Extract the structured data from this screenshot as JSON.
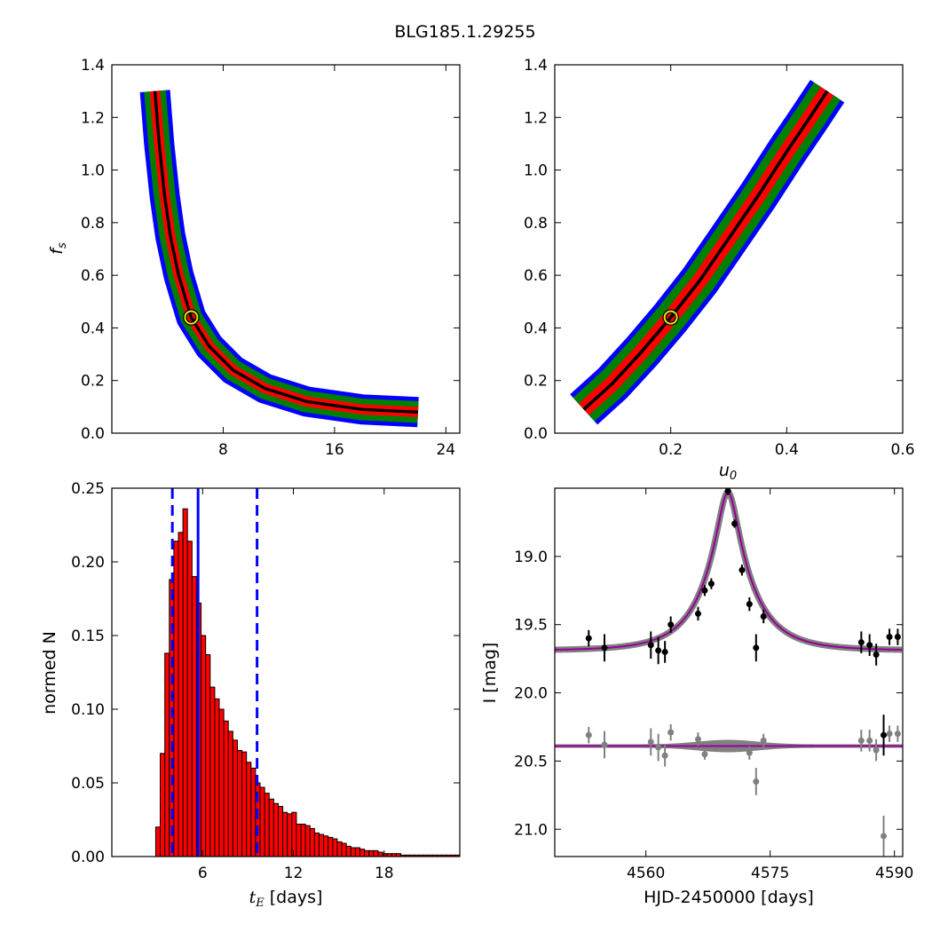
{
  "title": "BLG185.1.29255",
  "chart_data": [
    {
      "type": "heatmap",
      "panel": "top-left",
      "xlabel": "",
      "ylabel": "f_s",
      "xlim": [
        0,
        25
      ],
      "ylim": [
        0,
        1.4
      ],
      "xticks": [
        "8",
        "16",
        "24"
      ],
      "yticks": [
        "0.0",
        "0.2",
        "0.4",
        "0.6",
        "0.8",
        "1.0",
        "1.2",
        "1.4"
      ],
      "levels": [
        {
          "name": "outer",
          "color": "#0000ff",
          "width_frac": 1.0
        },
        {
          "name": "middle",
          "color": "#008000",
          "width_frac": 0.72
        },
        {
          "name": "inner",
          "color": "#ff0000",
          "width_frac": 0.34
        },
        {
          "name": "core",
          "color": "#000000",
          "width_frac": 0.1
        }
      ],
      "ridge_points": [
        {
          "x": 3.1,
          "y": 1.3
        },
        {
          "x": 3.4,
          "y": 1.1
        },
        {
          "x": 3.8,
          "y": 0.9
        },
        {
          "x": 4.2,
          "y": 0.75
        },
        {
          "x": 4.8,
          "y": 0.6
        },
        {
          "x": 5.7,
          "y": 0.44
        },
        {
          "x": 7.0,
          "y": 0.33
        },
        {
          "x": 8.7,
          "y": 0.24
        },
        {
          "x": 11.0,
          "y": 0.17
        },
        {
          "x": 14.0,
          "y": 0.12
        },
        {
          "x": 18.0,
          "y": 0.09
        },
        {
          "x": 22.0,
          "y": 0.08
        }
      ],
      "best_fit": {
        "x": 5.7,
        "y": 0.44
      }
    },
    {
      "type": "heatmap",
      "panel": "top-right",
      "xlabel": "u_0",
      "ylabel": "",
      "xlim": [
        0,
        0.6
      ],
      "ylim": [
        0,
        1.4
      ],
      "xticks": [
        "0.2",
        "0.4",
        "0.6"
      ],
      "yticks": [
        "0.0",
        "0.2",
        "0.4",
        "0.6",
        "0.8",
        "1.0",
        "1.2",
        "1.4"
      ],
      "levels": [
        {
          "name": "outer",
          "color": "#0000ff",
          "width_frac": 1.0
        },
        {
          "name": "middle",
          "color": "#008000",
          "width_frac": 0.78
        },
        {
          "name": "inner",
          "color": "#ff0000",
          "width_frac": 0.38
        },
        {
          "name": "core",
          "color": "#000000",
          "width_frac": 0.08
        }
      ],
      "ridge_points": [
        {
          "x": 0.05,
          "y": 0.09
        },
        {
          "x": 0.1,
          "y": 0.19
        },
        {
          "x": 0.15,
          "y": 0.31
        },
        {
          "x": 0.2,
          "y": 0.44
        },
        {
          "x": 0.25,
          "y": 0.58
        },
        {
          "x": 0.3,
          "y": 0.74
        },
        {
          "x": 0.35,
          "y": 0.9
        },
        {
          "x": 0.4,
          "y": 1.07
        },
        {
          "x": 0.44,
          "y": 1.2
        },
        {
          "x": 0.47,
          "y": 1.3
        }
      ],
      "best_fit": {
        "x": 0.2,
        "y": 0.44
      }
    },
    {
      "type": "bar",
      "panel": "bottom-left",
      "xlabel": "t_E [days]",
      "ylabel": "normed N",
      "xlim": [
        0,
        23
      ],
      "ylim": [
        0,
        0.25
      ],
      "xticks": [
        "6",
        "12",
        "18"
      ],
      "yticks": [
        "0.00",
        "0.05",
        "0.10",
        "0.15",
        "0.20",
        "0.25"
      ],
      "bin_width": 0.3,
      "bin_start": 2.9,
      "bar_color": "#ff0000",
      "values": [
        0.02,
        0.07,
        0.138,
        0.188,
        0.214,
        0.22,
        0.236,
        0.214,
        0.19,
        0.172,
        0.15,
        0.137,
        0.115,
        0.107,
        0.1,
        0.092,
        0.085,
        0.079,
        0.072,
        0.071,
        0.064,
        0.06,
        0.05,
        0.047,
        0.043,
        0.039,
        0.036,
        0.034,
        0.03,
        0.029,
        0.03,
        0.022,
        0.022,
        0.021,
        0.019,
        0.016,
        0.015,
        0.014,
        0.013,
        0.012,
        0.01,
        0.009,
        0.007,
        0.006,
        0.006,
        0.005,
        0.004,
        0.004,
        0.004,
        0.003,
        0.002,
        0.002,
        0.002,
        0.002,
        0.001,
        0.001,
        0.001,
        0.001,
        0.001,
        0.001,
        0.001,
        0.001,
        0.001,
        0.001,
        0.001,
        0.001,
        0.001
      ],
      "vlines": [
        {
          "x": 4.0,
          "style": "dashed",
          "color": "#0000ff"
        },
        {
          "x": 5.7,
          "style": "solid",
          "color": "#0000ff"
        },
        {
          "x": 9.6,
          "style": "dashed",
          "color": "#0000ff"
        }
      ]
    },
    {
      "type": "scatter",
      "panel": "bottom-right",
      "xlabel": "HJD-2450000 [days]",
      "ylabel": "I [mag]",
      "xlim": [
        4549,
        4591
      ],
      "ylim": [
        21.2,
        18.5
      ],
      "xticks": [
        "4560",
        "4575",
        "4590"
      ],
      "yticks": [
        "19.0",
        "19.5",
        "20.0",
        "20.5",
        "21.0"
      ],
      "model": {
        "t0": 4569.9,
        "u0": 0.2,
        "tE": 5.7,
        "I_base": 19.69,
        "peak_I": 18.53,
        "color": "#990099",
        "band_color": "#808080"
      },
      "residual_baseline": 20.39,
      "series": [
        {
          "name": "",
          "color": "#000000",
          "points": [
            {
              "x": 4553.1,
              "y": 19.6,
              "err": 0.06
            },
            {
              "x": 4555.0,
              "y": 19.67,
              "err": 0.1
            },
            {
              "x": 4560.6,
              "y": 19.65,
              "err": 0.1
            },
            {
              "x": 4561.5,
              "y": 19.69,
              "err": 0.1
            },
            {
              "x": 4562.3,
              "y": 19.7,
              "err": 0.08
            },
            {
              "x": 4563.0,
              "y": 19.5,
              "err": 0.06
            },
            {
              "x": 4566.3,
              "y": 19.42,
              "err": 0.05
            },
            {
              "x": 4567.1,
              "y": 19.25,
              "err": 0.04
            },
            {
              "x": 4567.9,
              "y": 19.2,
              "err": 0.04
            },
            {
              "x": 4569.9,
              "y": 18.52,
              "err": 0.03
            },
            {
              "x": 4570.7,
              "y": 18.76,
              "err": 0.03
            },
            {
              "x": 4571.6,
              "y": 19.1,
              "err": 0.04
            },
            {
              "x": 4572.5,
              "y": 19.35,
              "err": 0.05
            },
            {
              "x": 4573.3,
              "y": 19.67,
              "err": 0.1
            },
            {
              "x": 4574.2,
              "y": 19.44,
              "err": 0.05
            },
            {
              "x": 4586.0,
              "y": 19.63,
              "err": 0.08
            },
            {
              "x": 4587.0,
              "y": 19.65,
              "err": 0.08
            },
            {
              "x": 4587.8,
              "y": 19.72,
              "err": 0.08
            },
            {
              "x": 4588.7,
              "y": 20.31,
              "err": 0.15
            },
            {
              "x": 4589.4,
              "y": 19.59,
              "err": 0.06
            },
            {
              "x": 4590.4,
              "y": 19.59,
              "err": 0.06
            }
          ]
        },
        {
          "name": "",
          "color": "#808080",
          "points": [
            {
              "x": 4553.1,
              "y": 20.31,
              "err": 0.06
            },
            {
              "x": 4555.0,
              "y": 20.38,
              "err": 0.1
            },
            {
              "x": 4560.6,
              "y": 20.36,
              "err": 0.1
            },
            {
              "x": 4561.5,
              "y": 20.4,
              "err": 0.1
            },
            {
              "x": 4562.3,
              "y": 20.46,
              "err": 0.08
            },
            {
              "x": 4563.0,
              "y": 20.29,
              "err": 0.06
            },
            {
              "x": 4566.3,
              "y": 20.34,
              "err": 0.05
            },
            {
              "x": 4567.1,
              "y": 20.45,
              "err": 0.04
            },
            {
              "x": 4572.5,
              "y": 20.44,
              "err": 0.05
            },
            {
              "x": 4573.3,
              "y": 20.65,
              "err": 0.1
            },
            {
              "x": 4574.2,
              "y": 20.35,
              "err": 0.05
            },
            {
              "x": 4586.0,
              "y": 20.35,
              "err": 0.08
            },
            {
              "x": 4587.0,
              "y": 20.35,
              "err": 0.08
            },
            {
              "x": 4587.8,
              "y": 20.42,
              "err": 0.08
            },
            {
              "x": 4588.7,
              "y": 21.05,
              "err": 0.15
            },
            {
              "x": 4589.4,
              "y": 20.3,
              "err": 0.06
            },
            {
              "x": 4590.4,
              "y": 20.3,
              "err": 0.06
            }
          ]
        }
      ]
    }
  ]
}
